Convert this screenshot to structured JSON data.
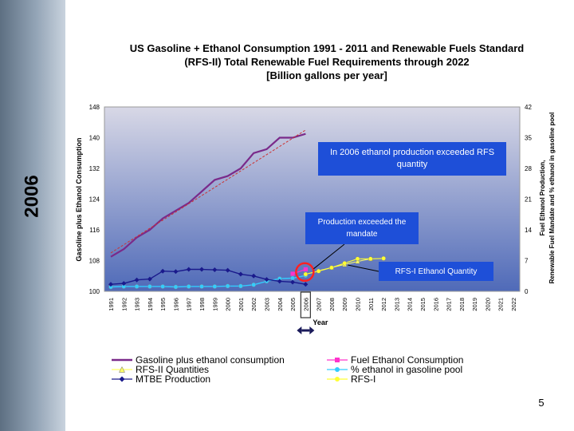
{
  "slide": {
    "side_title": "2006",
    "title_lines": [
      "US Gasoline + Ethanol Consumption 1991 - 2011 and Renewable Fuels Standard",
      "(RFS-II) Total Renewable Fuel Requirements through 2022",
      "[Billion gallons per year]"
    ],
    "page_number": "5",
    "callouts": {
      "ethanol_2006": "In 2006 ethanol production exceeded RFS quantity",
      "production": "Production exceeded the mandate",
      "rfs1": "RFS-I Ethanol Quantity"
    }
  },
  "colors": {
    "plot_top": "#d8d8e6",
    "plot_bottom": "#4f6ab8",
    "gasoline": "#7a2a8a",
    "fuel_ethanol": "#ff33cc",
    "rfs2": "#ffff66",
    "pct_ethanol": "#33ccff",
    "mtbe": "#1a1a8c",
    "rfs1": "#ffff33",
    "trend": "#cc3333",
    "callout": "#1e4fd8",
    "highlight_circle": "#ff2222"
  },
  "chart_data": {
    "type": "line",
    "title": "",
    "xlabel": "Year",
    "ylabel": "Gasoline plus Ethanol Consumption",
    "y2label": "Fuel Ethanol Production, Renewable Fuel Mandate and % ethanol in gasoline pool",
    "x": [
      "1991",
      "1992",
      "1993",
      "1994",
      "1995",
      "1996",
      "1997",
      "1998",
      "1999",
      "2000",
      "2001",
      "2002",
      "2003",
      "2004",
      "2005",
      "2006",
      "2007",
      "2008",
      "2009",
      "2010",
      "2011",
      "2012",
      "2013",
      "2014",
      "2015",
      "2016",
      "2017",
      "2018",
      "2019",
      "2020",
      "2021",
      "2022"
    ],
    "ylim": [
      100,
      148
    ],
    "yticks": [
      "100",
      "108",
      "116",
      "124",
      "132",
      "140",
      "148"
    ],
    "y2lim": [
      0,
      42
    ],
    "y2ticks": [
      "0",
      "7",
      "14",
      "21",
      "28",
      "35",
      "42"
    ],
    "grid": false,
    "legend_position": "bottom",
    "legend": [
      "Gasoline plus ethanol consumption",
      "Fuel Ethanol Consumption",
      "RFS-II Quantities",
      "% ethanol in gasoline pool",
      "MTBE Production",
      "RFS-I"
    ],
    "series": [
      {
        "name": "Gasoline plus ethanol consumption",
        "axis": "left",
        "values": [
          109,
          111,
          114,
          116,
          119,
          121,
          123,
          126,
          129,
          130,
          132,
          136,
          137,
          140,
          140,
          141,
          null,
          null,
          null,
          null,
          null,
          null,
          null,
          null,
          null,
          null,
          null,
          null,
          null,
          null,
          null,
          null
        ]
      },
      {
        "name": "Fuel Ethanol Consumption",
        "axis": "right",
        "values": [
          null,
          null,
          null,
          null,
          null,
          null,
          null,
          null,
          null,
          null,
          null,
          null,
          null,
          null,
          4.0,
          5.0,
          null,
          null,
          null,
          null,
          null,
          null,
          null,
          null,
          null,
          null,
          null,
          null,
          null,
          null,
          null,
          null
        ]
      },
      {
        "name": "RFS-II Quantities",
        "axis": "right",
        "values": [
          null,
          null,
          null,
          null,
          null,
          null,
          null,
          null,
          null,
          null,
          null,
          null,
          null,
          null,
          null,
          null,
          4.7,
          5.4,
          6.1,
          6.8,
          7.4,
          null,
          null,
          null,
          null,
          null,
          null,
          null,
          null,
          null,
          null,
          null
        ]
      },
      {
        "name": "% ethanol in gasoline pool",
        "axis": "right",
        "values": [
          1.0,
          1.1,
          1.1,
          1.1,
          1.1,
          1.0,
          1.1,
          1.1,
          1.1,
          1.2,
          1.2,
          1.5,
          2.3,
          2.9,
          3.0,
          3.6,
          null,
          null,
          null,
          null,
          null,
          null,
          null,
          null,
          null,
          null,
          null,
          null,
          null,
          null,
          null,
          null
        ]
      },
      {
        "name": "MTBE Production",
        "axis": "right",
        "values": [
          1.6,
          1.8,
          2.6,
          2.8,
          4.6,
          4.5,
          5.0,
          5.0,
          4.9,
          4.8,
          3.9,
          3.5,
          2.7,
          2.3,
          2.1,
          1.6,
          null,
          null,
          null,
          null,
          null,
          null,
          null,
          null,
          null,
          null,
          null,
          null,
          null,
          null,
          null,
          null
        ]
      },
      {
        "name": "RFS-I",
        "axis": "right",
        "values": [
          null,
          null,
          null,
          null,
          null,
          null,
          null,
          null,
          null,
          null,
          null,
          null,
          null,
          null,
          null,
          3.9,
          4.6,
          5.4,
          6.4,
          7.4,
          7.4,
          7.5,
          null,
          null,
          null,
          null,
          null,
          null,
          null,
          null,
          null,
          null
        ]
      },
      {
        "name": "",
        "axis": "left",
        "values": [
          110,
          null,
          null,
          null,
          null,
          null,
          null,
          null,
          null,
          null,
          null,
          null,
          null,
          null,
          null,
          142,
          null,
          null,
          null,
          null,
          null,
          null,
          null,
          null,
          null,
          null,
          null,
          null,
          null,
          null,
          null,
          null
        ]
      }
    ]
  }
}
